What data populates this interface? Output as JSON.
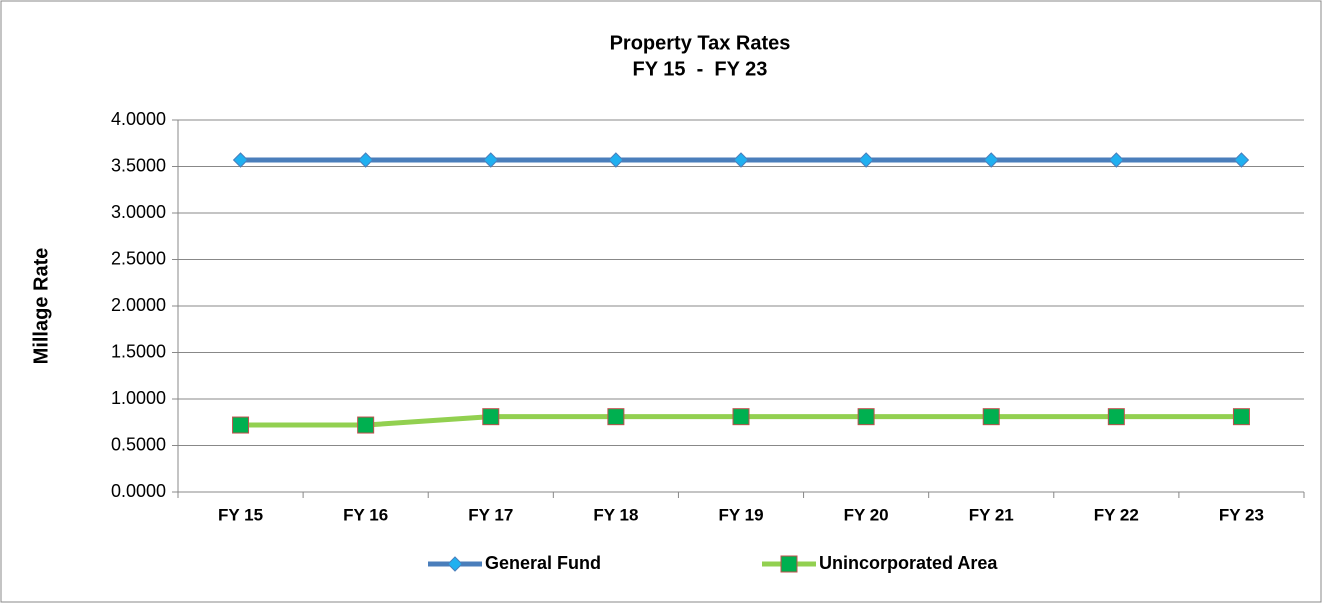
{
  "chart_data": {
    "type": "line",
    "title": "Property Tax Rates",
    "subtitle": "FY 15  -  FY 23",
    "y_label": "Millage Rate",
    "categories": [
      "FY 15",
      "FY 16",
      "FY 17",
      "FY 18",
      "FY 19",
      "FY 20",
      "FY 21",
      "FY 22",
      "FY 23"
    ],
    "series": [
      {
        "name": "General Fund",
        "color": "#4a7ebb",
        "marker": "diamond",
        "marker_color": "#20b0f0",
        "values": [
          3.57,
          3.57,
          3.57,
          3.57,
          3.57,
          3.57,
          3.57,
          3.57,
          3.57
        ]
      },
      {
        "name": "Unincorporated Area",
        "color": "#92d050",
        "marker": "square",
        "marker_color": "#00b050",
        "values": [
          0.72,
          0.72,
          0.81,
          0.81,
          0.81,
          0.81,
          0.81,
          0.81,
          0.81
        ]
      }
    ],
    "ylim": [
      0,
      4
    ],
    "yticks": [
      {
        "value": 0,
        "label": "0.0000"
      },
      {
        "value": 0.5,
        "label": "0.5000"
      },
      {
        "value": 1,
        "label": "1.0000"
      },
      {
        "value": 1.5,
        "label": "1.5000"
      },
      {
        "value": 2,
        "label": "2.0000"
      },
      {
        "value": 2.5,
        "label": "2.5000"
      },
      {
        "value": 3,
        "label": "3.0000"
      },
      {
        "value": 3.5,
        "label": "3.5000"
      },
      {
        "value": 4,
        "label": "4.0000"
      }
    ],
    "grid": true,
    "legend": "bottom"
  }
}
